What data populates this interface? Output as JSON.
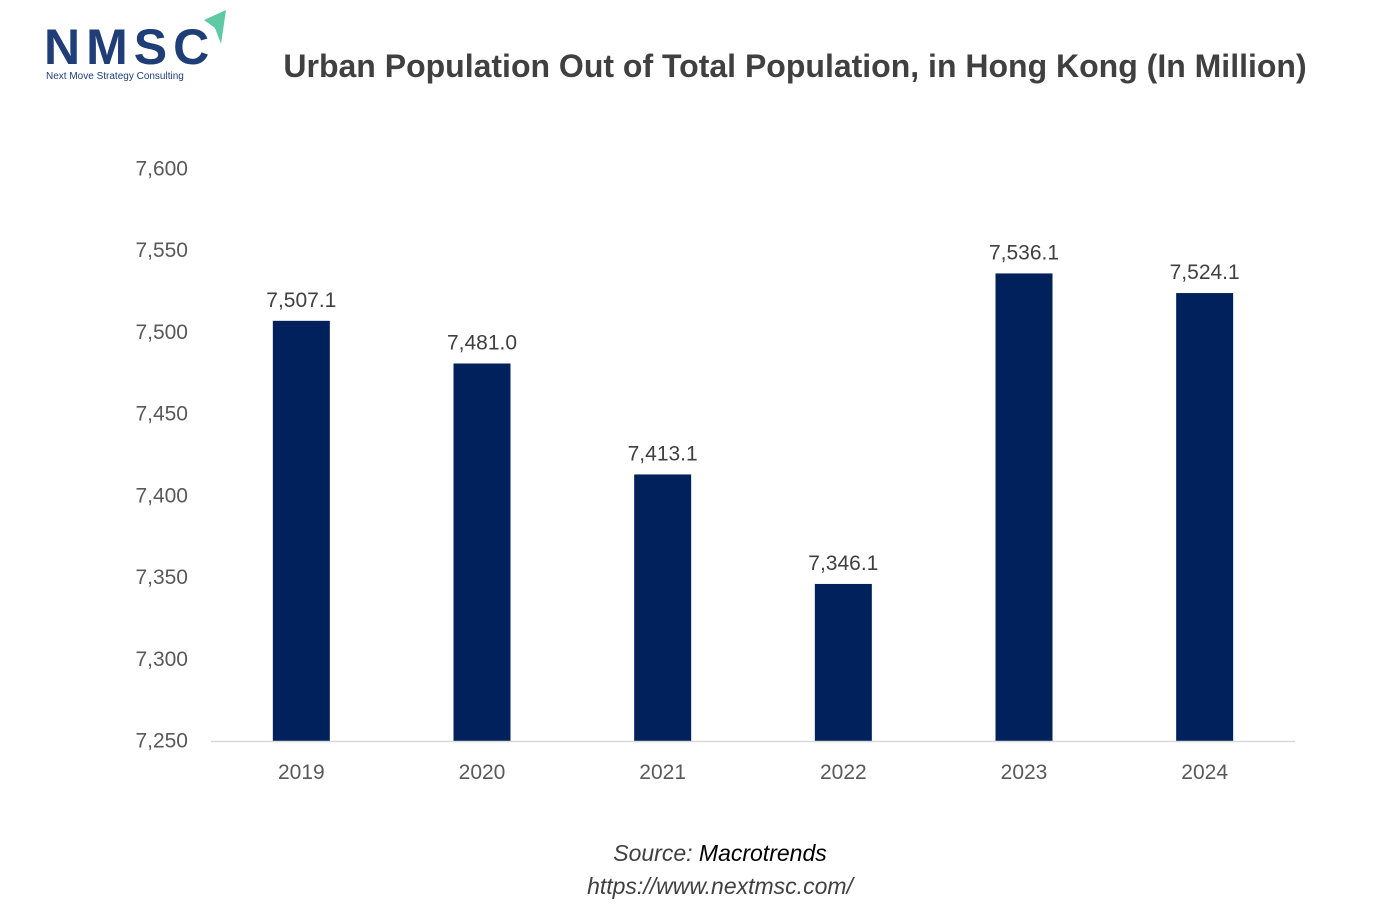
{
  "logo": {
    "text": "NMSC",
    "subtitle": "Next Move Strategy Consulting",
    "arrow_color": "#5fc9a4",
    "text_color": "#1f3d77"
  },
  "colors": {
    "bar": "#00215b",
    "axis_text": "#595959",
    "label_text": "#404040",
    "axis_line": "#d9d9d9"
  },
  "source": {
    "prefix": "Source: ",
    "name": "Macrotrends",
    "url": "https://www.nextmsc.com/"
  },
  "chart_data": {
    "type": "bar",
    "title": "Urban Population Out of Total Population, in Hong Kong (In Million)",
    "xlabel": "",
    "ylabel": "",
    "categories": [
      "2019",
      "2020",
      "2021",
      "2022",
      "2023",
      "2024"
    ],
    "values": [
      7507.1,
      7481.0,
      7413.1,
      7346.1,
      7536.1,
      7524.1
    ],
    "value_labels": [
      "7,507.1",
      "7,481.0",
      "7,413.1",
      "7,346.1",
      "7,536.1",
      "7,524.1"
    ],
    "ylim": [
      7250,
      7600
    ],
    "yticks": [
      7250,
      7300,
      7350,
      7400,
      7450,
      7500,
      7550,
      7600
    ],
    "ytick_labels": [
      "7,250",
      "7,300",
      "7,350",
      "7,400",
      "7,450",
      "7,500",
      "7,550",
      "7,600"
    ],
    "grid": false,
    "legend": "none"
  }
}
